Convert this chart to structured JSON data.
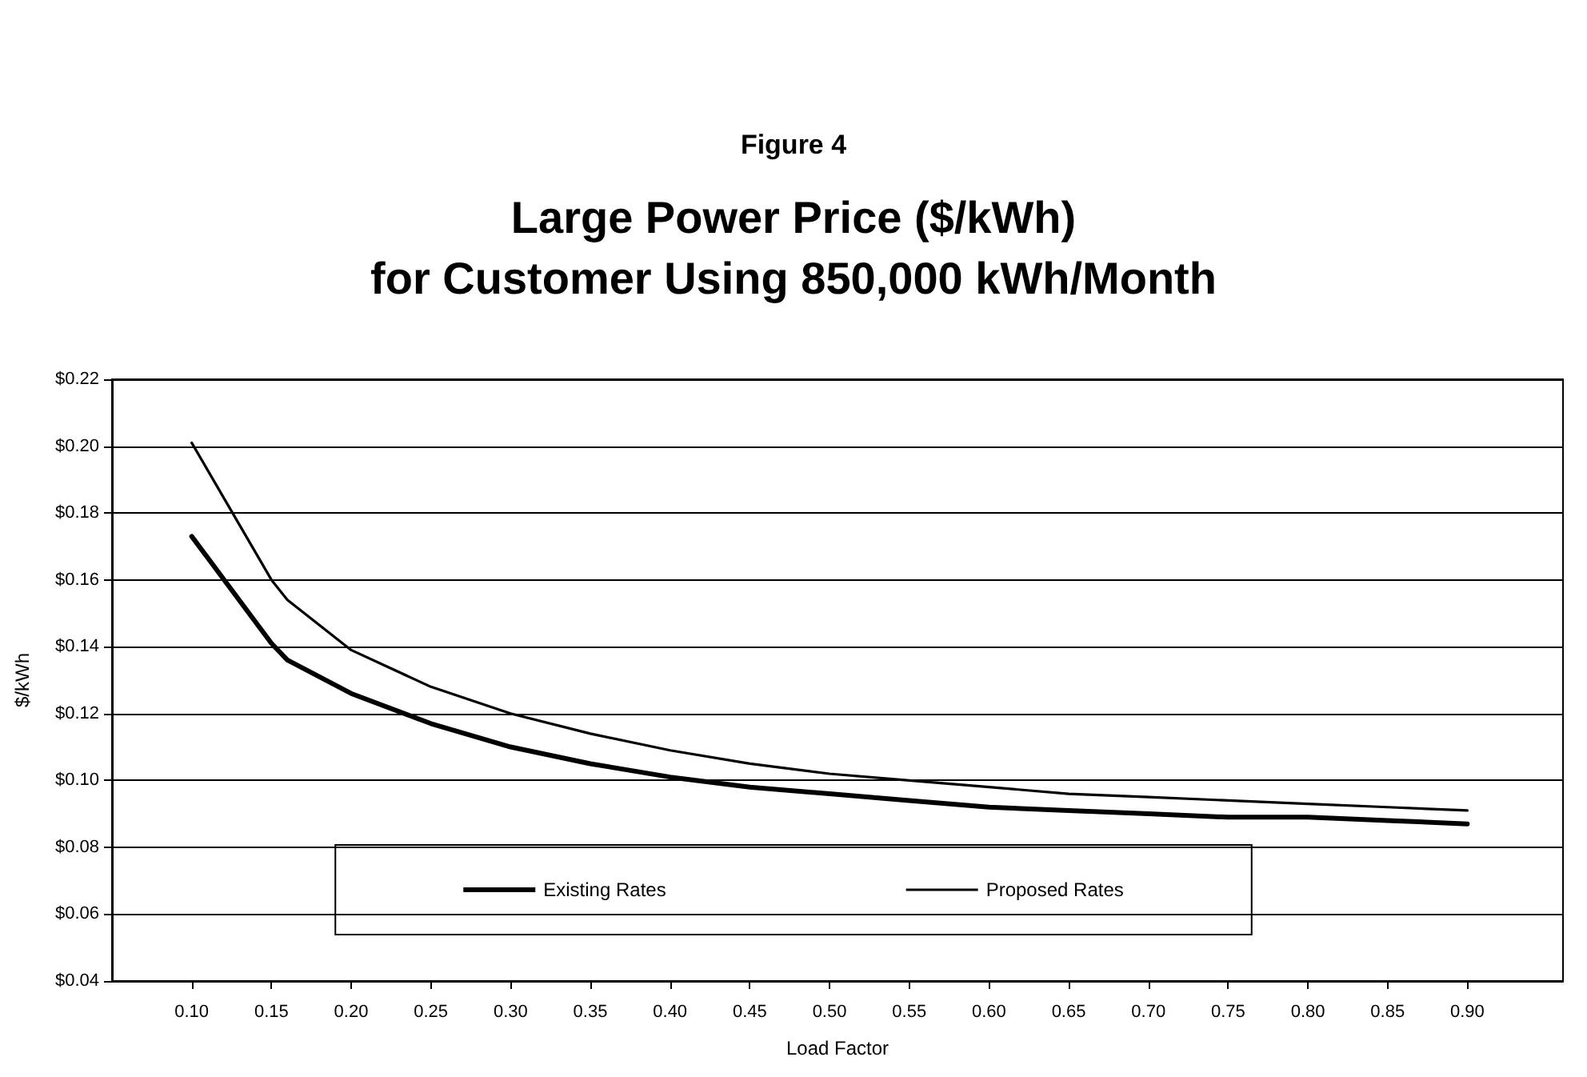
{
  "chart_data": {
    "type": "line",
    "title": "Large Power Price ($/kWh)\nfor Customer Using 850,000 kWh/Month",
    "annotations": [
      "Figure 4"
    ],
    "xlabel": "Load Factor",
    "ylabel": "$/kWh",
    "x": [
      0.1,
      0.15,
      0.16,
      0.2,
      0.25,
      0.3,
      0.35,
      0.4,
      0.45,
      0.5,
      0.55,
      0.6,
      0.65,
      0.7,
      0.75,
      0.8,
      0.85,
      0.9
    ],
    "series": [
      {
        "name": "Existing Rates",
        "color": "#000000",
        "values": [
          0.173,
          0.141,
          0.136,
          0.126,
          0.117,
          0.11,
          0.105,
          0.101,
          0.098,
          0.096,
          0.094,
          0.092,
          0.091,
          0.09,
          0.089,
          0.089,
          0.088,
          0.087
        ]
      },
      {
        "name": "Proposed Rates",
        "color": "#000000",
        "values": [
          0.201,
          0.16,
          0.154,
          0.139,
          0.128,
          0.12,
          0.114,
          0.109,
          0.105,
          0.102,
          0.1,
          0.098,
          0.096,
          0.095,
          0.094,
          0.093,
          0.092,
          0.091
        ]
      }
    ],
    "xlim": [
      0.05,
      0.96
    ],
    "xticks": [
      {
        "value": 0.1,
        "label": "0.10"
      },
      {
        "value": 0.15,
        "label": "0.15"
      },
      {
        "value": 0.2,
        "label": "0.20"
      },
      {
        "value": 0.25,
        "label": "0.25"
      },
      {
        "value": 0.3,
        "label": "0.30"
      },
      {
        "value": 0.35,
        "label": "0.35"
      },
      {
        "value": 0.4,
        "label": "0.40"
      },
      {
        "value": 0.45,
        "label": "0.45"
      },
      {
        "value": 0.5,
        "label": "0.50"
      },
      {
        "value": 0.55,
        "label": "0.55"
      },
      {
        "value": 0.6,
        "label": "0.60"
      },
      {
        "value": 0.65,
        "label": "0.65"
      },
      {
        "value": 0.7,
        "label": "0.70"
      },
      {
        "value": 0.75,
        "label": "0.75"
      },
      {
        "value": 0.8,
        "label": "0.80"
      },
      {
        "value": 0.85,
        "label": "0.85"
      },
      {
        "value": 0.9,
        "label": "0.90"
      }
    ],
    "ylim": [
      0.04,
      0.22
    ],
    "yticks": [
      {
        "value": 0.04,
        "label": "$0.04"
      },
      {
        "value": 0.06,
        "label": "$0.06"
      },
      {
        "value": 0.08,
        "label": "$0.08"
      },
      {
        "value": 0.1,
        "label": "$0.10"
      },
      {
        "value": 0.12,
        "label": "$0.12"
      },
      {
        "value": 0.14,
        "label": "$0.14"
      },
      {
        "value": 0.16,
        "label": "$0.16"
      },
      {
        "value": 0.18,
        "label": "$0.18"
      },
      {
        "value": 0.2,
        "label": "$0.20"
      },
      {
        "value": 0.22,
        "label": "$0.22"
      }
    ],
    "grid": "y",
    "legend": "bottom",
    "marker": "none",
    "line_style": "solid"
  }
}
